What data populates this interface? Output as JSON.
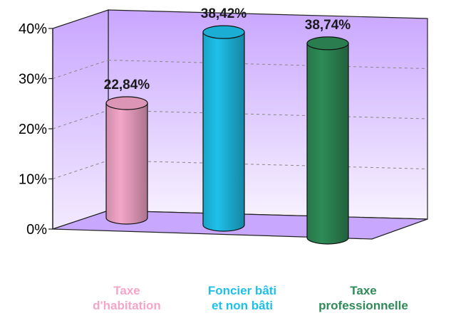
{
  "chart_data": {
    "type": "bar",
    "style": "3d-cylinder",
    "categories": [
      [
        "Taxe",
        "d'habitation"
      ],
      [
        "Foncier bâti",
        "et non bâti"
      ],
      [
        "Taxe",
        "professionnelle"
      ]
    ],
    "values": [
      22.84,
      38.42,
      38.74
    ],
    "data_labels": [
      "22,84%",
      "38,42%",
      "38,74%"
    ],
    "colors": [
      "#f4a6c8",
      "#1ec0ea",
      "#2e8b57"
    ],
    "ylim": [
      0,
      40
    ],
    "yticks": [
      {
        "value": 0,
        "label": "0%"
      },
      {
        "value": 10,
        "label": "10%"
      },
      {
        "value": 20,
        "label": "20%"
      },
      {
        "value": 30,
        "label": "30%"
      },
      {
        "value": 40,
        "label": "40%"
      }
    ],
    "grid": true,
    "wall_color": "#dcc8ff",
    "floor_color": "#c8a8ff"
  }
}
